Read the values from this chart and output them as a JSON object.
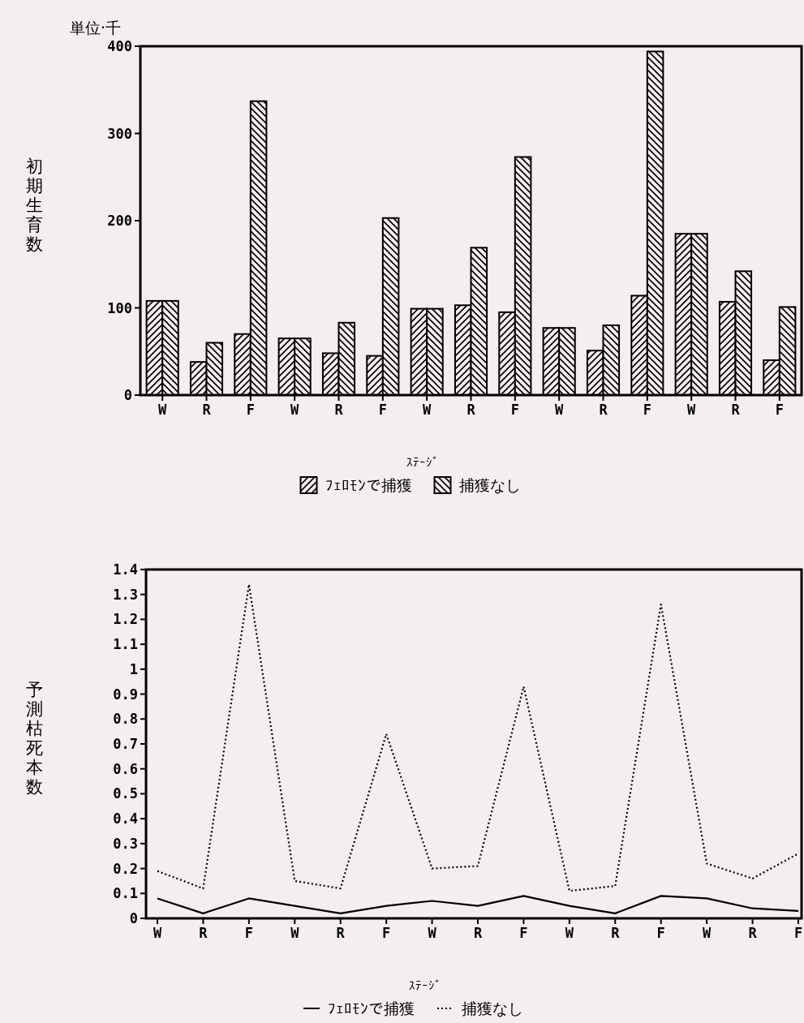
{
  "chart_data": [
    {
      "type": "bar",
      "ylabel": "初期生育数",
      "xlabel": "ｽﾃｰｼﾞ",
      "annotations": [
        "単位·千"
      ],
      "categories": [
        "W",
        "R",
        "F",
        "W",
        "R",
        "F",
        "W",
        "R",
        "F",
        "W",
        "R",
        "F",
        "W",
        "R",
        "F"
      ],
      "series": [
        {
          "name": "ﾌｪﾛﾓﾝで捕獲",
          "color": "#000000",
          "values": [
            108,
            38,
            70,
            65,
            48,
            45,
            99,
            103,
            95,
            77,
            51,
            114,
            185,
            107,
            40
          ]
        },
        {
          "name": "捕獲なし",
          "color": "#000000",
          "values": [
            108,
            60,
            337,
            65,
            83,
            203,
            99,
            169,
            273,
            77,
            80,
            394,
            185,
            142,
            101
          ]
        }
      ],
      "ylim": [
        0,
        400
      ],
      "yticks": [
        0,
        100,
        200,
        300,
        400
      ],
      "grid": false,
      "legend": "bottom"
    },
    {
      "type": "line",
      "ylabel": "予測枯死本数",
      "xlabel": "ｽﾃｰｼﾞ",
      "categories": [
        "W",
        "R",
        "F",
        "W",
        "R",
        "F",
        "W",
        "R",
        "F",
        "W",
        "R",
        "F",
        "W",
        "R",
        "F"
      ],
      "series": [
        {
          "name": "ﾌｪﾛﾓﾝで捕獲",
          "color": "#000000",
          "line_style": "solid",
          "values": [
            0.08,
            0.02,
            0.08,
            0.05,
            0.02,
            0.05,
            0.07,
            0.05,
            0.09,
            0.05,
            0.02,
            0.09,
            0.08,
            0.04,
            0.03
          ]
        },
        {
          "name": "捕獲なし",
          "color": "#000000",
          "line_style": "dotted",
          "values": [
            0.19,
            0.12,
            1.34,
            0.15,
            0.12,
            0.74,
            0.2,
            0.21,
            0.93,
            0.11,
            0.13,
            1.26,
            0.22,
            0.16,
            0.26
          ]
        }
      ],
      "ylim": [
        0,
        1.4
      ],
      "yticks": [
        0,
        0.1,
        0.2,
        0.3,
        0.4,
        0.5,
        0.6,
        0.7,
        0.8,
        0.9,
        1,
        1.1,
        1.2,
        1.3,
        1.4
      ],
      "grid": false,
      "marker": "none",
      "legend": "bottom"
    }
  ]
}
